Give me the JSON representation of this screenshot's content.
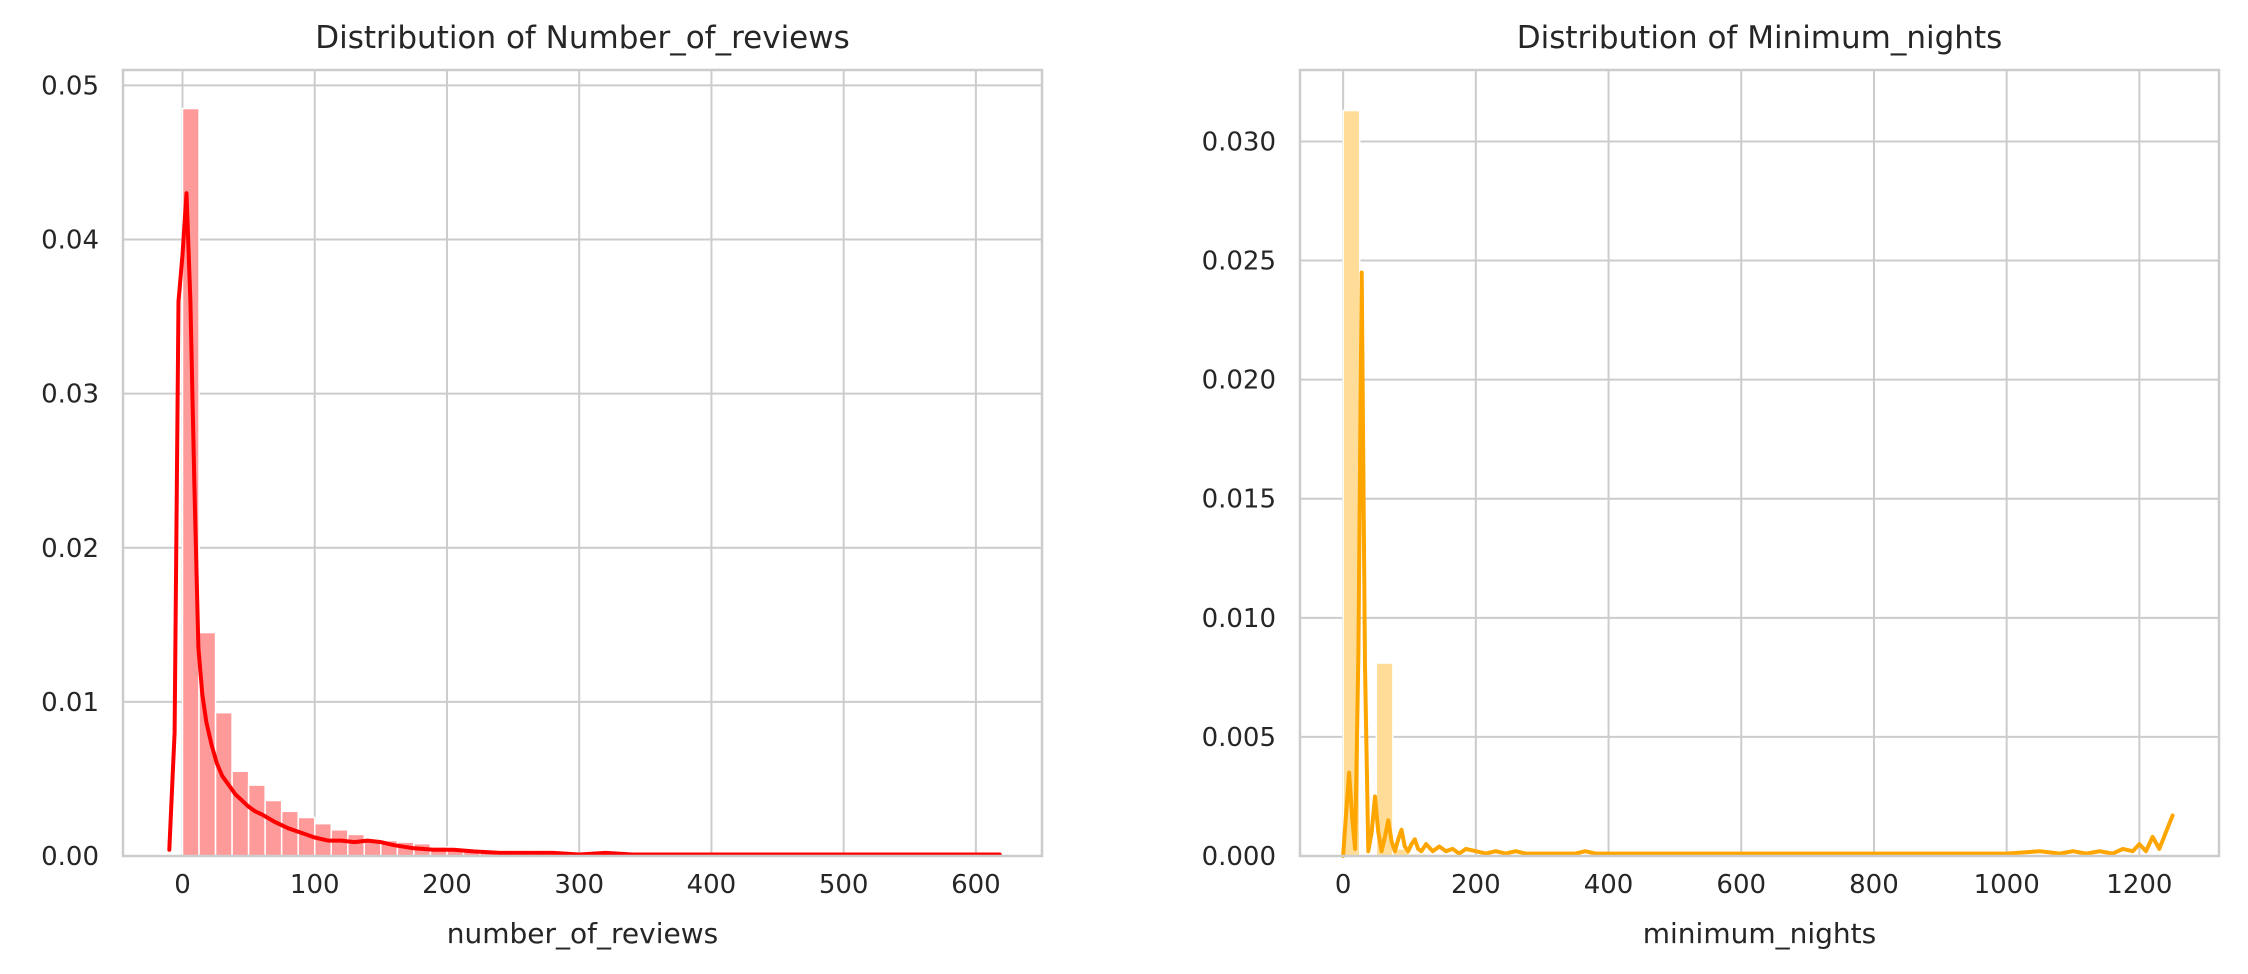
{
  "chart_data": [
    {
      "type": "bar",
      "title": "Distribution of Number_of_reviews",
      "xlabel": "number_of_reviews",
      "ylabel": "",
      "xlim": [
        -45,
        650
      ],
      "ylim": [
        0,
        0.051
      ],
      "xticks": [
        0,
        100,
        200,
        300,
        400,
        500,
        600
      ],
      "yticks": [
        0.0,
        0.01,
        0.02,
        0.03,
        0.04,
        0.05
      ],
      "ytick_labels": [
        "0.00",
        "0.01",
        "0.02",
        "0.03",
        "0.04",
        "0.05"
      ],
      "grid": true,
      "colors": {
        "bars": "#ff9a9a",
        "line": "#ff0000"
      },
      "histogram": {
        "bin_start": 0,
        "bin_width": 12.5,
        "values": [
          0.0485,
          0.0145,
          0.0093,
          0.0055,
          0.0046,
          0.0036,
          0.0029,
          0.0025,
          0.0021,
          0.0017,
          0.0014,
          0.0011,
          0.001,
          0.0009,
          0.0008,
          0.0006,
          0.0005,
          0.0004,
          0.0004,
          0.0003,
          0.0003,
          0.0002,
          0.0002,
          0.0002,
          0.0001,
          0.0001,
          0.0001,
          0.0001,
          0.0001,
          0.0001
        ]
      },
      "kde": {
        "x": [
          -10,
          -6,
          -3,
          0,
          3,
          6,
          9,
          12,
          15,
          18,
          22,
          26,
          30,
          35,
          40,
          45,
          50,
          55,
          60,
          70,
          80,
          90,
          100,
          110,
          120,
          130,
          140,
          150,
          160,
          175,
          190,
          205,
          220,
          240,
          260,
          280,
          300,
          320,
          340,
          360,
          400,
          450,
          500,
          550,
          600,
          618
        ],
        "y": [
          0.0004,
          0.008,
          0.036,
          0.039,
          0.043,
          0.036,
          0.024,
          0.0135,
          0.0105,
          0.0087,
          0.0072,
          0.006,
          0.0052,
          0.0046,
          0.004,
          0.0036,
          0.0032,
          0.0029,
          0.0027,
          0.0022,
          0.0018,
          0.0015,
          0.0012,
          0.001,
          0.001,
          0.0009,
          0.001,
          0.0009,
          0.0007,
          0.0005,
          0.0004,
          0.0004,
          0.0003,
          0.0002,
          0.0002,
          0.0002,
          0.0001,
          0.0002,
          0.0001,
          0.0001,
          0.0001,
          0.0001,
          0.0001,
          0.0001,
          0.0001,
          0.0001
        ]
      }
    },
    {
      "type": "bar",
      "title": "Distribution of Minimum_nights",
      "xlabel": "minimum_nights",
      "ylabel": "",
      "xlim": [
        -65,
        1320
      ],
      "ylim": [
        0,
        0.033
      ],
      "xticks": [
        0,
        200,
        400,
        600,
        800,
        1000,
        1200
      ],
      "yticks": [
        0.0,
        0.005,
        0.01,
        0.015,
        0.02,
        0.025,
        0.03
      ],
      "ytick_labels": [
        "0.000",
        "0.005",
        "0.010",
        "0.015",
        "0.020",
        "0.025",
        "0.030"
      ],
      "grid": true,
      "colors": {
        "bars": "#ffdd99",
        "line": "#ffa500"
      },
      "histogram": {
        "bin_start": 0,
        "bin_width": 25,
        "values": [
          0.0313,
          0.0,
          0.0081,
          0.0003,
          0.0001
        ]
      },
      "kde": {
        "x": [
          0,
          4,
          9,
          14,
          18,
          23,
          28,
          33,
          38,
          43,
          48,
          53,
          58,
          63,
          68,
          73,
          78,
          83,
          88,
          93,
          98,
          103,
          108,
          113,
          118,
          125,
          135,
          145,
          155,
          165,
          175,
          185,
          200,
          215,
          230,
          245,
          260,
          275,
          290,
          310,
          330,
          350,
          365,
          380,
          400,
          450,
          500,
          600,
          700,
          800,
          900,
          1000,
          1050,
          1080,
          1100,
          1120,
          1140,
          1160,
          1175,
          1190,
          1200,
          1210,
          1220,
          1230,
          1240,
          1250
        ],
        "y": [
          0.0,
          0.0016,
          0.0035,
          0.0015,
          0.0003,
          0.0085,
          0.0245,
          0.008,
          0.0002,
          0.001,
          0.0025,
          0.001,
          0.0002,
          0.0008,
          0.0015,
          0.0006,
          0.0002,
          0.0007,
          0.0011,
          0.0004,
          0.0002,
          0.0005,
          0.0007,
          0.0003,
          0.0002,
          0.0005,
          0.0002,
          0.0004,
          0.0002,
          0.0003,
          0.0001,
          0.0003,
          0.0002,
          0.0001,
          0.0002,
          0.0001,
          0.0002,
          0.0001,
          0.0001,
          0.0001,
          0.0001,
          0.0001,
          0.0002,
          0.0001,
          0.0001,
          0.0001,
          0.0001,
          0.0001,
          0.0001,
          0.0001,
          0.0001,
          0.0001,
          0.0002,
          0.0001,
          0.0002,
          0.0001,
          0.0002,
          0.0001,
          0.0003,
          0.0002,
          0.0005,
          0.0002,
          0.0008,
          0.0003,
          0.001,
          0.0017
        ]
      }
    }
  ]
}
